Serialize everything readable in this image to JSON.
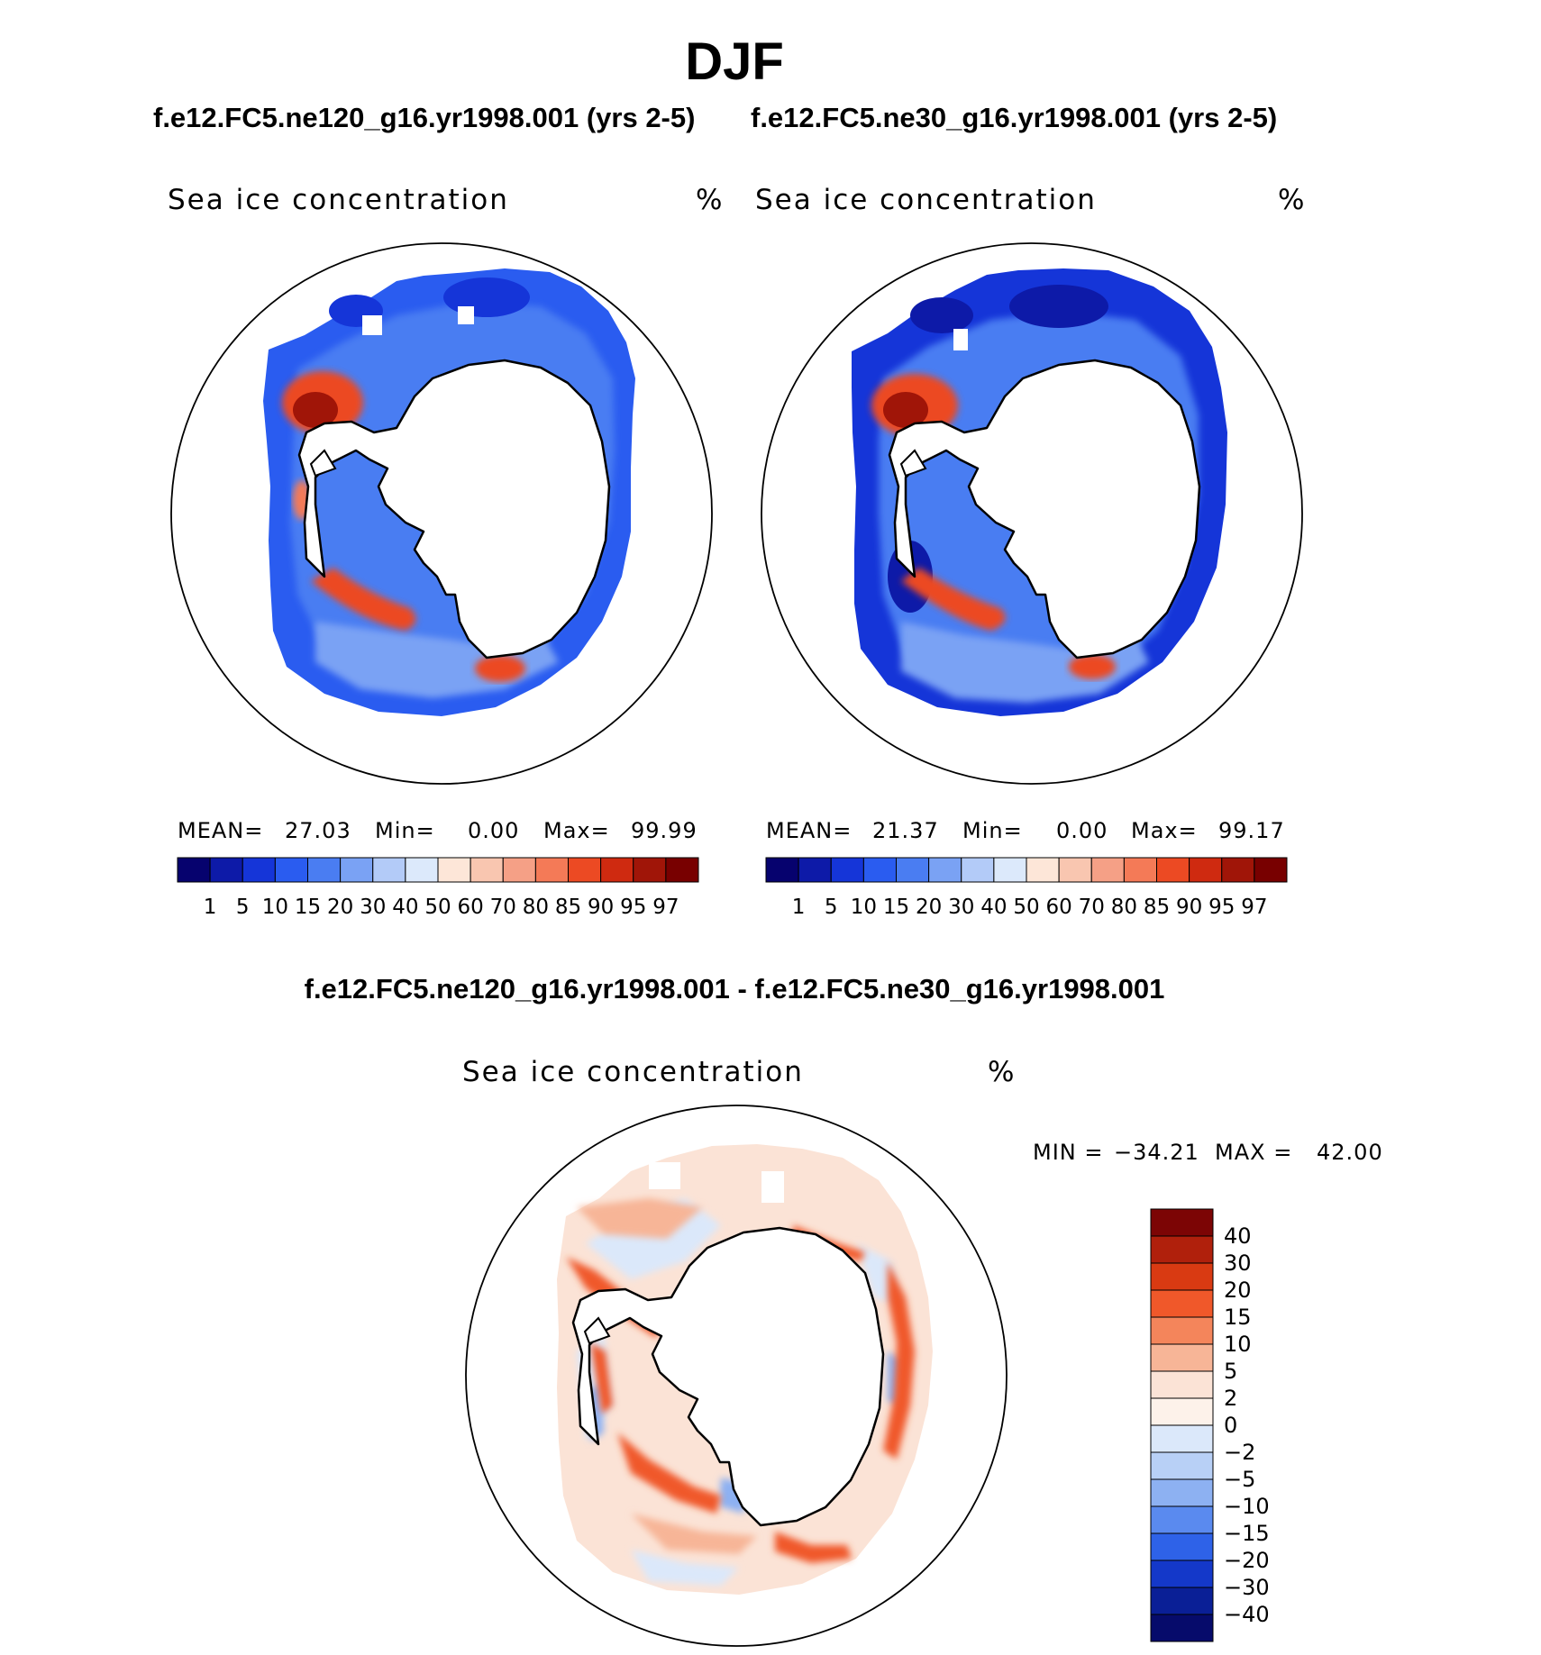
{
  "figure": {
    "title": "DJF",
    "panel_left_run": "f.e12.FC5.ne120_g16.yr1998.001 (yrs 2-5)",
    "panel_right_run": "f.e12.FC5.ne30_g16.yr1998.001 (yrs 2-5)",
    "diff_run": "f.e12.FC5.ne120_g16.yr1998.001 - f.e12.FC5.ne30_g16.yr1998.001"
  },
  "chart_data": [
    {
      "type": "heatmap",
      "panel": "left",
      "title": "Sea ice concentration",
      "units": "%",
      "stats": {
        "mean_label": "MEAN=",
        "mean_value": "27.03",
        "min_label": "Min=",
        "min_value": "0.00",
        "max_label": "Max=",
        "max_value": "99.99"
      },
      "colorbar": {
        "levels": [
          "1",
          "5",
          "10",
          "15",
          "20",
          "30",
          "40",
          "50",
          "60",
          "70",
          "80",
          "85",
          "90",
          "95",
          "97"
        ],
        "colors": [
          "#06026e",
          "#0d1aa8",
          "#1535d8",
          "#2a5cf0",
          "#4a7df2",
          "#7aa2f4",
          "#b3cbf8",
          "#dce9fb",
          "#fde6d8",
          "#f9c6b0",
          "#f5a086",
          "#f47a57",
          "#ec4a23",
          "#cf2a10",
          "#a01508",
          "#780000"
        ]
      }
    },
    {
      "type": "heatmap",
      "panel": "right",
      "title": "Sea ice concentration",
      "units": "%",
      "stats": {
        "mean_label": "MEAN=",
        "mean_value": "21.37",
        "min_label": "Min=",
        "min_value": "0.00",
        "max_label": "Max=",
        "max_value": "99.17"
      },
      "colorbar": {
        "levels": [
          "1",
          "5",
          "10",
          "15",
          "20",
          "30",
          "40",
          "50",
          "60",
          "70",
          "80",
          "85",
          "90",
          "95",
          "97"
        ],
        "colors": [
          "#06026e",
          "#0d1aa8",
          "#1535d8",
          "#2a5cf0",
          "#4a7df2",
          "#7aa2f4",
          "#b3cbf8",
          "#dce9fb",
          "#fde6d8",
          "#f9c6b0",
          "#f5a086",
          "#f47a57",
          "#ec4a23",
          "#cf2a10",
          "#a01508",
          "#780000"
        ]
      }
    },
    {
      "type": "heatmap",
      "panel": "difference",
      "title": "Sea ice concentration",
      "units": "%",
      "stats": {
        "min_label": "MIN =",
        "min_value": "−34.21",
        "max_label": "MAX =",
        "max_value": "42.00"
      },
      "colorbar": {
        "levels_top_to_bottom": [
          "40",
          "30",
          "20",
          "15",
          "10",
          "5",
          "2",
          "0",
          "−2",
          "−5",
          "−10",
          "−15",
          "−20",
          "−30",
          "−40"
        ],
        "colors_top_to_bottom": [
          "#7c0505",
          "#b0200c",
          "#d93a12",
          "#f0582a",
          "#f4855b",
          "#f7b597",
          "#fbe3d6",
          "#fdf2ea",
          "#dbe8fa",
          "#b8d0f6",
          "#8db1f2",
          "#5a8aef",
          "#2e62e8",
          "#1438c9",
          "#0a1f96",
          "#060b6b"
        ]
      }
    }
  ]
}
